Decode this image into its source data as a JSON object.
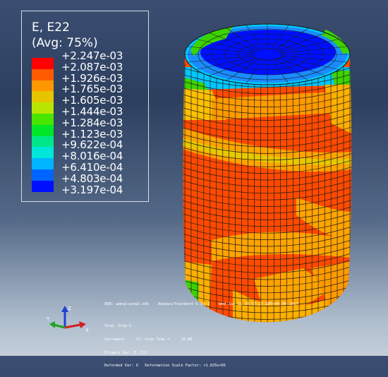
{
  "legend": {
    "title": "E, E22",
    "subtitle": "(Avg: 75%)",
    "values": [
      "+2.247e-03",
      "+2.087e-03",
      "+1.926e-03",
      "+1.765e-03",
      "+1.605e-03",
      "+1.444e-03",
      "+1.284e-03",
      "+1.123e-03",
      "+9.622e-04",
      "+8.016e-04",
      "+6.410e-04",
      "+4.803e-04",
      "+3.197e-04"
    ],
    "colors": [
      "#ff0000",
      "#ff5a00",
      "#ff9800",
      "#e6c400",
      "#b8e600",
      "#48e600",
      "#00e628",
      "#00e68a",
      "#00e6d8",
      "#00b4ff",
      "#0064ff",
      "#0010ff"
    ]
  },
  "model_info": {
    "line1": "ODB: wangliang3.odb    Abaqus/Standard 6.14-1    Wed Jan 11 10:57:27 GMT+08:00 2017"
  },
  "step_info": {
    "line1": "Step: Step-1",
    "line2": "Increment     11: Step Time =     10.00",
    "line3": "Primary Var: E, E22",
    "line4": "Deformed Var: U   Deformation Scale Factor: +1.825e+01"
  },
  "triad": {
    "x_label": "X",
    "y_label": "Y",
    "z_label": "Z"
  },
  "accent_colors": {
    "triad_x": "#d21f1f",
    "triad_y": "#1fa51f",
    "triad_z": "#1f3fd2"
  }
}
